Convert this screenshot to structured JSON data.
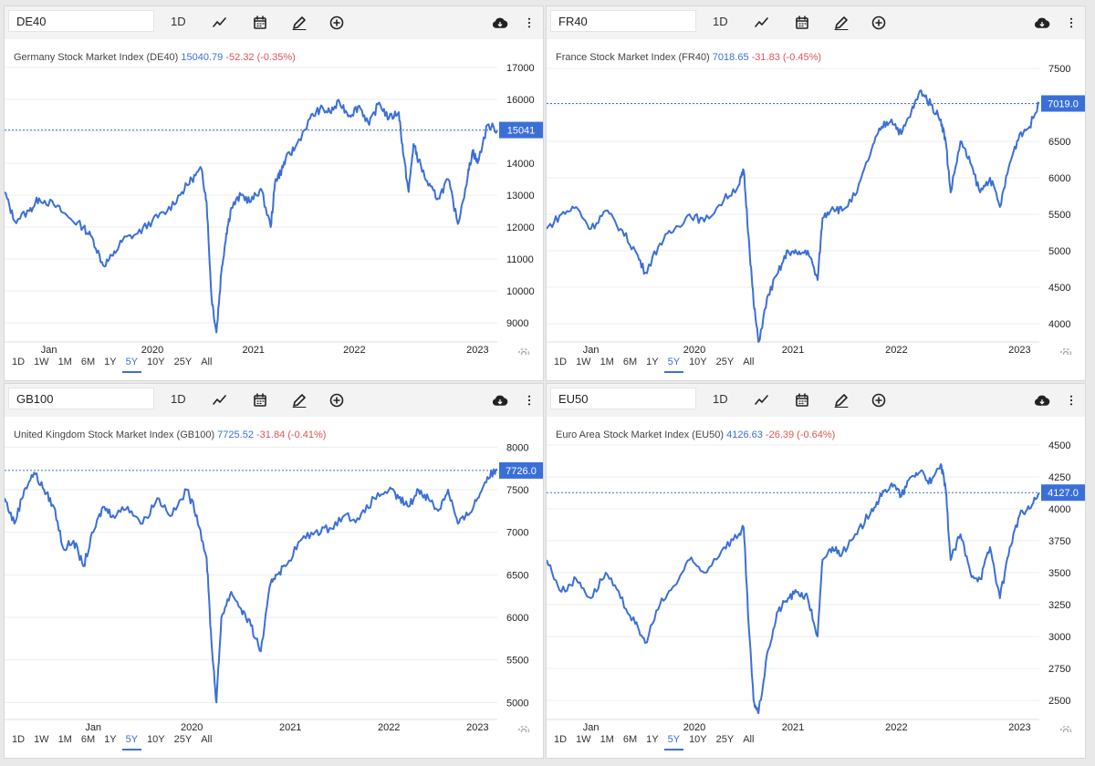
{
  "common": {
    "timeframe": "1D",
    "ranges": [
      "1D",
      "1W",
      "1M",
      "6M",
      "1Y",
      "5Y",
      "10Y",
      "25Y",
      "All"
    ],
    "active_range": "5Y",
    "icons": [
      "line-chart-icon",
      "calendar-icon",
      "pencil-icon",
      "add-circle-icon",
      "cloud-download-icon",
      "more-vertical-icon",
      "settings-gear-icon"
    ],
    "colors": {
      "line": "#3b6fd8",
      "price": "#3b6fd8",
      "change": "#e05454",
      "grid": "#ececec",
      "axis_text": "#222"
    }
  },
  "panels": [
    {
      "symbol": "DE40",
      "name": "Germany Stock Market Index (DE40)",
      "price": "15040.79",
      "change": "-52.32 (-0.35%)"
    },
    {
      "symbol": "FR40",
      "name": "France Stock Market Index (FR40)",
      "price": "7018.65",
      "change": "-31.83 (-0.45%)"
    },
    {
      "symbol": "GB100",
      "name": "United Kingdom Stock Market Index (GB100)",
      "price": "7725.52",
      "change": "-31.84 (-0.41%)"
    },
    {
      "symbol": "EU50",
      "name": "Euro Area Stock Market Index (EU50)",
      "price": "4126.63",
      "change": "-26.39 (-0.64%)"
    }
  ],
  "chart_data": [
    {
      "type": "line",
      "title": "Germany Stock Market Index (DE40)",
      "x_ticks": [
        "Jan",
        "2020",
        "2021",
        "2022",
        "2023"
      ],
      "x_tick_t": [
        0.09,
        0.3,
        0.505,
        0.71,
        0.96
      ],
      "y_ticks": [
        9000,
        10000,
        11000,
        12000,
        13000,
        14000,
        15000,
        16000,
        17000
      ],
      "ylim": [
        8400,
        17200
      ],
      "last_label": "15041",
      "last_value": 15041,
      "series": [
        {
          "name": "DE40",
          "x": [
            0,
            0.02,
            0.05,
            0.07,
            0.1,
            0.13,
            0.16,
            0.18,
            0.2,
            0.22,
            0.24,
            0.27,
            0.3,
            0.33,
            0.36,
            0.38,
            0.4,
            0.41,
            0.42,
            0.43,
            0.44,
            0.45,
            0.46,
            0.48,
            0.5,
            0.52,
            0.54,
            0.55,
            0.56,
            0.57,
            0.59,
            0.62,
            0.64,
            0.66,
            0.68,
            0.7,
            0.72,
            0.74,
            0.76,
            0.78,
            0.8,
            0.81,
            0.82,
            0.83,
            0.84,
            0.86,
            0.88,
            0.9,
            0.92,
            0.94,
            0.95,
            0.96,
            0.98,
            1.0
          ],
          "values": [
            13100,
            12200,
            12500,
            12900,
            12700,
            12300,
            12000,
            11600,
            10800,
            11100,
            11600,
            11800,
            12200,
            12500,
            13100,
            13500,
            13800,
            12800,
            9800,
            8700,
            10600,
            11800,
            12600,
            13000,
            12800,
            13200,
            12000,
            13500,
            13700,
            14100,
            14500,
            15400,
            15700,
            15600,
            15900,
            15500,
            15800,
            15200,
            15900,
            15400,
            15600,
            14200,
            13100,
            14600,
            14100,
            13300,
            12900,
            13500,
            12100,
            13600,
            14400,
            14000,
            15200,
            15041
          ]
        }
      ]
    },
    {
      "type": "line",
      "title": "France Stock Market Index (FR40)",
      "x_ticks": [
        "Jan",
        "2020",
        "2021",
        "2022",
        "2023"
      ],
      "x_tick_t": [
        0.09,
        0.3,
        0.5,
        0.71,
        0.96
      ],
      "y_ticks": [
        4000,
        4500,
        5000,
        5500,
        6000,
        6500,
        7000,
        7500
      ],
      "ylim": [
        3750,
        7600
      ],
      "last_label": "7019.0",
      "last_value": 7019,
      "series": [
        {
          "name": "FR40",
          "x": [
            0,
            0.03,
            0.06,
            0.09,
            0.12,
            0.15,
            0.18,
            0.2,
            0.23,
            0.26,
            0.29,
            0.32,
            0.36,
            0.39,
            0.4,
            0.41,
            0.42,
            0.43,
            0.45,
            0.47,
            0.49,
            0.51,
            0.53,
            0.55,
            0.56,
            0.58,
            0.6,
            0.63,
            0.66,
            0.68,
            0.7,
            0.72,
            0.74,
            0.76,
            0.78,
            0.8,
            0.81,
            0.82,
            0.84,
            0.86,
            0.88,
            0.9,
            0.92,
            0.94,
            0.96,
            0.98,
            1.0
          ],
          "values": [
            5300,
            5500,
            5600,
            5300,
            5550,
            5300,
            5000,
            4700,
            5100,
            5300,
            5500,
            5400,
            5700,
            5900,
            6100,
            5200,
            4300,
            3750,
            4400,
            4700,
            5000,
            4950,
            5000,
            4600,
            5450,
            5600,
            5550,
            5800,
            6400,
            6700,
            6800,
            6600,
            6900,
            7200,
            7000,
            6800,
            6500,
            5800,
            6500,
            6200,
            5800,
            6000,
            5600,
            6200,
            6600,
            6700,
            7019
          ]
        }
      ]
    },
    {
      "type": "line",
      "title": "United Kingdom Stock Market Index (GB100)",
      "x_ticks": [
        "Jan",
        "2020",
        "2021",
        "2022",
        "2023"
      ],
      "x_tick_t": [
        0.18,
        0.38,
        0.58,
        0.78,
        0.96
      ],
      "y_ticks": [
        5000,
        5500,
        6000,
        6500,
        7000,
        7500,
        8000
      ],
      "ylim": [
        4800,
        8100
      ],
      "last_label": "7726.0",
      "last_value": 7726,
      "series": [
        {
          "name": "GB100",
          "x": [
            0,
            0.02,
            0.04,
            0.06,
            0.08,
            0.1,
            0.12,
            0.14,
            0.16,
            0.18,
            0.2,
            0.22,
            0.25,
            0.28,
            0.31,
            0.34,
            0.37,
            0.39,
            0.41,
            0.42,
            0.43,
            0.44,
            0.46,
            0.48,
            0.5,
            0.52,
            0.54,
            0.55,
            0.57,
            0.6,
            0.63,
            0.66,
            0.69,
            0.72,
            0.75,
            0.78,
            0.8,
            0.82,
            0.84,
            0.86,
            0.88,
            0.9,
            0.92,
            0.94,
            0.96,
            0.98,
            1.0
          ],
          "values": [
            7400,
            7100,
            7500,
            7700,
            7500,
            7300,
            6800,
            6900,
            6600,
            7000,
            7300,
            7200,
            7300,
            7100,
            7400,
            7200,
            7500,
            7200,
            6700,
            5700,
            5000,
            6000,
            6300,
            6100,
            5900,
            5600,
            6400,
            6500,
            6600,
            6900,
            7000,
            7050,
            7200,
            7150,
            7400,
            7500,
            7400,
            7300,
            7500,
            7400,
            7250,
            7500,
            7100,
            7200,
            7400,
            7650,
            7726
          ]
        }
      ]
    },
    {
      "type": "line",
      "title": "Euro Area Stock Market Index (EU50)",
      "x_ticks": [
        "Jan",
        "2020",
        "2021",
        "2022",
        "2023"
      ],
      "x_tick_t": [
        0.09,
        0.3,
        0.5,
        0.71,
        0.96
      ],
      "y_ticks": [
        2500,
        2750,
        3000,
        3250,
        3500,
        3750,
        4000,
        4250,
        4500
      ],
      "ylim": [
        2350,
        4550
      ],
      "last_label": "4127.0",
      "last_value": 4127,
      "series": [
        {
          "name": "EU50",
          "x": [
            0,
            0.03,
            0.06,
            0.09,
            0.12,
            0.15,
            0.18,
            0.2,
            0.23,
            0.26,
            0.29,
            0.32,
            0.36,
            0.39,
            0.4,
            0.41,
            0.42,
            0.43,
            0.45,
            0.47,
            0.49,
            0.51,
            0.53,
            0.55,
            0.56,
            0.58,
            0.6,
            0.63,
            0.66,
            0.68,
            0.7,
            0.72,
            0.74,
            0.76,
            0.78,
            0.8,
            0.81,
            0.82,
            0.84,
            0.86,
            0.88,
            0.9,
            0.92,
            0.94,
            0.96,
            0.98,
            1.0
          ],
          "values": [
            3600,
            3350,
            3450,
            3300,
            3500,
            3300,
            3100,
            2950,
            3250,
            3400,
            3600,
            3500,
            3700,
            3800,
            3850,
            3100,
            2500,
            2400,
            2900,
            3200,
            3300,
            3350,
            3300,
            3000,
            3600,
            3700,
            3650,
            3800,
            4000,
            4100,
            4200,
            4100,
            4250,
            4300,
            4200,
            4350,
            4150,
            3600,
            3800,
            3500,
            3450,
            3700,
            3300,
            3700,
            3950,
            4000,
            4127
          ]
        }
      ]
    }
  ]
}
